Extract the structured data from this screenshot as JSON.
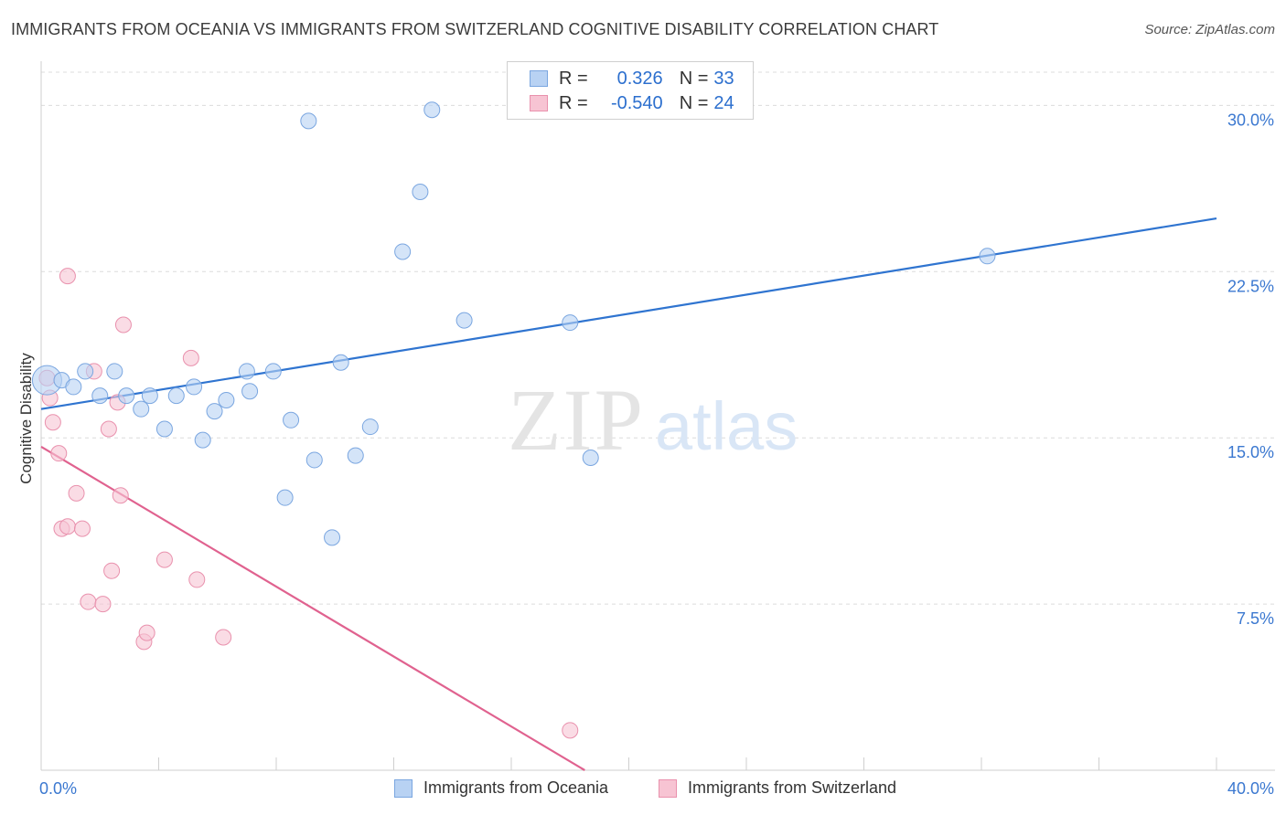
{
  "header": {
    "title": "IMMIGRANTS FROM OCEANIA VS IMMIGRANTS FROM SWITZERLAND COGNITIVE DISABILITY CORRELATION CHART",
    "source": "Source: ZipAtlas.com"
  },
  "legend": {
    "rows": [
      {
        "r_label": "R =",
        "r_value": "0.326",
        "n_label": "N =",
        "n_value": "33"
      },
      {
        "r_label": "R =",
        "r_value": "-0.540",
        "n_label": "N =",
        "n_value": "24"
      }
    ]
  },
  "bottom_legend": {
    "items": [
      "Immigrants from Oceania",
      "Immigrants from Switzerland"
    ]
  },
  "watermark": {
    "zip": "ZIP",
    "atlas": "atlas"
  },
  "colors": {
    "blue_fill": "#b8d2f3",
    "blue_stroke": "#7aa6e0",
    "blue_line": "#2f74d0",
    "pink_fill": "#f7c4d3",
    "pink_stroke": "#e991ad",
    "pink_line": "#e0628f",
    "tick_label": "#3b78d0"
  },
  "chart_data": {
    "type": "scatter",
    "title": "IMMIGRANTS FROM OCEANIA VS IMMIGRANTS FROM SWITZERLAND COGNITIVE DISABILITY CORRELATION CHART",
    "xlabel": "",
    "ylabel": "Cognitive Disability",
    "xlim": [
      0,
      40
    ],
    "ylim": [
      0,
      31.5
    ],
    "x_tick_labels": [
      "0.0%",
      "40.0%"
    ],
    "y_ticks": [
      7.5,
      15.0,
      22.5,
      30.0
    ],
    "y_tick_labels": [
      "7.5%",
      "15.0%",
      "22.5%",
      "30.0%"
    ],
    "grid": true,
    "legend_position": "top-center",
    "series": [
      {
        "name": "Immigrants from Oceania",
        "color": "blue",
        "points": [
          [
            0.2,
            17.6
          ],
          [
            0.7,
            17.6
          ],
          [
            1.1,
            17.3
          ],
          [
            1.5,
            18.0
          ],
          [
            2.0,
            16.9
          ],
          [
            2.5,
            18.0
          ],
          [
            2.9,
            16.9
          ],
          [
            3.4,
            16.3
          ],
          [
            3.7,
            16.9
          ],
          [
            4.2,
            15.4
          ],
          [
            4.6,
            16.9
          ],
          [
            5.2,
            17.3
          ],
          [
            5.5,
            14.9
          ],
          [
            5.9,
            16.2
          ],
          [
            6.3,
            16.7
          ],
          [
            7.0,
            18.0
          ],
          [
            7.1,
            17.1
          ],
          [
            7.9,
            18.0
          ],
          [
            8.3,
            12.3
          ],
          [
            8.5,
            15.8
          ],
          [
            9.1,
            29.3
          ],
          [
            9.3,
            14.0
          ],
          [
            9.9,
            10.5
          ],
          [
            10.2,
            18.4
          ],
          [
            10.7,
            14.2
          ],
          [
            11.2,
            15.5
          ],
          [
            12.3,
            23.4
          ],
          [
            12.9,
            26.1
          ],
          [
            13.3,
            29.8
          ],
          [
            14.4,
            20.3
          ],
          [
            18.0,
            20.2
          ],
          [
            18.7,
            14.1
          ],
          [
            32.2,
            23.2
          ]
        ],
        "trend": {
          "x": [
            0,
            40
          ],
          "y": [
            16.3,
            24.9
          ]
        }
      },
      {
        "name": "Immigrants from Switzerland",
        "color": "pink",
        "points": [
          [
            0.2,
            17.7
          ],
          [
            0.3,
            16.8
          ],
          [
            0.4,
            15.7
          ],
          [
            0.6,
            14.3
          ],
          [
            0.7,
            10.9
          ],
          [
            0.9,
            22.3
          ],
          [
            0.9,
            11.0
          ],
          [
            1.2,
            12.5
          ],
          [
            1.4,
            10.9
          ],
          [
            1.6,
            7.6
          ],
          [
            1.8,
            18.0
          ],
          [
            2.1,
            7.5
          ],
          [
            2.3,
            15.4
          ],
          [
            2.4,
            9.0
          ],
          [
            2.6,
            16.6
          ],
          [
            2.7,
            12.4
          ],
          [
            2.8,
            20.1
          ],
          [
            3.5,
            5.8
          ],
          [
            3.6,
            6.2
          ],
          [
            4.2,
            9.5
          ],
          [
            5.1,
            18.6
          ],
          [
            5.3,
            8.6
          ],
          [
            6.2,
            6.0
          ],
          [
            18.0,
            1.8
          ]
        ],
        "trend": {
          "x": [
            0,
            18.5
          ],
          "y": [
            14.6,
            0.0
          ]
        }
      }
    ]
  }
}
